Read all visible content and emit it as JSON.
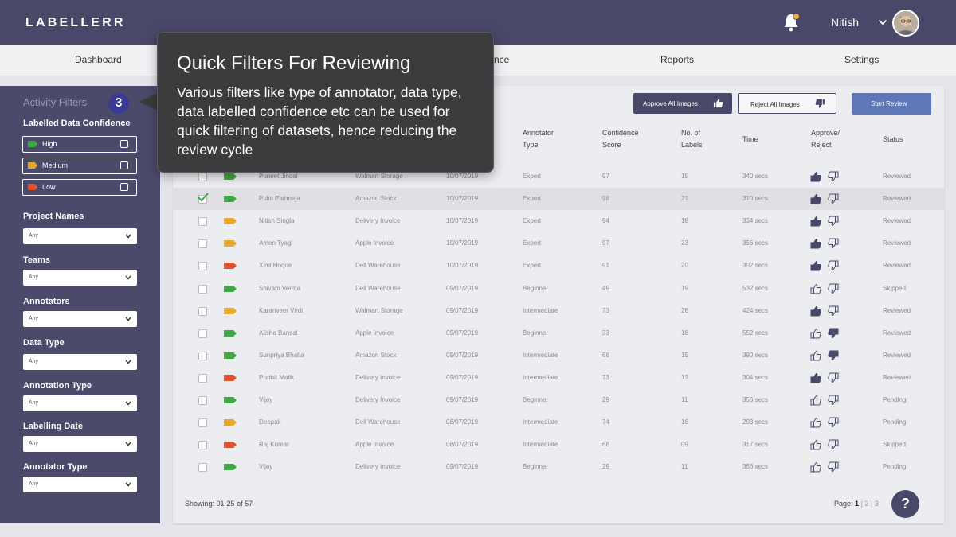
{
  "app": {
    "logo": "LABELLERR"
  },
  "user": {
    "name": "Nitish",
    "notification_dot_color": "#f0a840"
  },
  "nav": {
    "items": [
      {
        "label": "Dashboard"
      },
      {
        "label": "nce"
      },
      {
        "label": "Reports"
      },
      {
        "label": "Settings"
      }
    ]
  },
  "sidebar": {
    "title": "Activity Filters",
    "step_badge": "3",
    "confidence": {
      "label": "Labelled Data Confidence",
      "options": [
        {
          "label": "High",
          "color": "#3fa845"
        },
        {
          "label": "Medium",
          "color": "#e8a92a"
        },
        {
          "label": "Low",
          "color": "#e0522c"
        }
      ]
    },
    "filters": [
      {
        "label": "Project Names",
        "value": "Any"
      },
      {
        "label": "Teams",
        "value": "Any"
      },
      {
        "label": "Annotators",
        "value": "Any"
      },
      {
        "label": "Data Type",
        "value": "Any"
      },
      {
        "label": "Annotation Type",
        "value": "Any"
      },
      {
        "label": "Labelling Date",
        "value": "Any"
      },
      {
        "label": "Annotator Type",
        "value": "Any"
      }
    ]
  },
  "toolbar": {
    "approve_all": "Approve All Images",
    "reject_all": "Reject All Images",
    "start_review": "Start Review"
  },
  "table": {
    "headers": {
      "annotator_type_1": "Annotator",
      "annotator_type_2": "Type",
      "confidence_1": "Confidence",
      "confidence_2": "Score",
      "labels_1": "No. of",
      "labels_2": "Labels",
      "time": "Time",
      "approve_1": "Approve/",
      "approve_2": "Reject",
      "status": "Status"
    },
    "rows": [
      {
        "checked": false,
        "conf": "high",
        "name": "Puneet Jindal",
        "project": "Walmart Storage",
        "date": "10/07/2019",
        "atype": "Expert",
        "score": "97",
        "labels": "15",
        "time": "340 secs",
        "approved": true,
        "rejected": false,
        "status": "Reviewed"
      },
      {
        "checked": true,
        "conf": "high",
        "name": "Pulin Pathneja",
        "project": "Amazon Stock",
        "date": "10/07/2019",
        "atype": "Expert",
        "score": "98",
        "labels": "21",
        "time": "310 secs",
        "approved": true,
        "rejected": false,
        "status": "Reviewed"
      },
      {
        "checked": false,
        "conf": "medium",
        "name": "Nitish Singla",
        "project": "Delivery Invoice",
        "date": "10/07/2019",
        "atype": "Expert",
        "score": "94",
        "labels": "18",
        "time": "334 secs",
        "approved": true,
        "rejected": false,
        "status": "Reviewed"
      },
      {
        "checked": false,
        "conf": "medium",
        "name": "Amen Tyagi",
        "project": "Apple Invoice",
        "date": "10/07/2019",
        "atype": "Expert",
        "score": "97",
        "labels": "23",
        "time": "356 secs",
        "approved": true,
        "rejected": false,
        "status": "Reviewed"
      },
      {
        "checked": false,
        "conf": "low",
        "name": "Ximi Hoque",
        "project": "Dell Warehouse",
        "date": "10/07/2019",
        "atype": "Expert",
        "score": "91",
        "labels": "20",
        "time": "302 secs",
        "approved": true,
        "rejected": false,
        "status": "Reviewed"
      },
      {
        "checked": false,
        "conf": "high",
        "name": "Shivam Verma",
        "project": "Dell Warehouse",
        "date": "09/07/2019",
        "atype": "Beginner",
        "score": "49",
        "labels": "19",
        "time": "532 secs",
        "approved": false,
        "rejected": false,
        "status": "Skipped"
      },
      {
        "checked": false,
        "conf": "medium",
        "name": "Karanveer Virdi",
        "project": "Walmart Storage",
        "date": "09/07/2019",
        "atype": "Intermediate",
        "score": "73",
        "labels": "26",
        "time": "424 secs",
        "approved": true,
        "rejected": false,
        "status": "Reviewed"
      },
      {
        "checked": false,
        "conf": "high",
        "name": "Alisha Bansal",
        "project": "Apple Invoice",
        "date": "09/07/2019",
        "atype": "Beginner",
        "score": "33",
        "labels": "18",
        "time": "552 secs",
        "approved": false,
        "rejected": true,
        "status": "Reviewed"
      },
      {
        "checked": false,
        "conf": "high",
        "name": "Sunpriya Bhatia",
        "project": "Amazon Stock",
        "date": "09/07/2019",
        "atype": "Intermediate",
        "score": "68",
        "labels": "15",
        "time": "390 secs",
        "approved": false,
        "rejected": true,
        "status": "Reviewed"
      },
      {
        "checked": false,
        "conf": "low",
        "name": "Prathit Malik",
        "project": "Delivery Invoice",
        "date": "09/07/2019",
        "atype": "Intermediate",
        "score": "73",
        "labels": "12",
        "time": "304 secs",
        "approved": true,
        "rejected": false,
        "status": "Reviewed"
      },
      {
        "checked": false,
        "conf": "high",
        "name": "Vijay",
        "project": "Delivery Invoice",
        "date": "09/07/2019",
        "atype": "Beginner",
        "score": "29",
        "labels": "11",
        "time": "356 secs",
        "approved": false,
        "rejected": false,
        "status": "Pending"
      },
      {
        "checked": false,
        "conf": "medium",
        "name": "Deepak",
        "project": "Dell Warehouse",
        "date": "08/07/2019",
        "atype": "Intermediate",
        "score": "74",
        "labels": "16",
        "time": "293 secs",
        "approved": false,
        "rejected": false,
        "status": "Pending"
      },
      {
        "checked": false,
        "conf": "low",
        "name": "Raj Kumar",
        "project": "Apple Invoice",
        "date": "08/07/2019",
        "atype": "Intermediate",
        "score": "68",
        "labels": "09",
        "time": "317 secs",
        "approved": false,
        "rejected": false,
        "status": "Skipped"
      },
      {
        "checked": false,
        "conf": "high",
        "name": "Vijay",
        "project": "Delivery Invoice",
        "date": "09/07/2019",
        "atype": "Beginner",
        "score": "29",
        "labels": "11",
        "time": "356 secs",
        "approved": false,
        "rejected": false,
        "status": "Pending"
      }
    ]
  },
  "footer": {
    "showing_label": "Showing:",
    "showing_range": "01-25 of 57",
    "page_label": "Page:",
    "page_current": "1",
    "page_2": "2",
    "page_3": "3",
    "separator": "|",
    "help": "?"
  },
  "tooltip": {
    "title": "Quick Filters For Reviewing",
    "body": "Various filters like type of annotator, data type, data labelled confidence etc can be used for quick filtering of datasets, hence reducing the review cycle"
  },
  "colors": {
    "conf": {
      "high": "#3fa845",
      "medium": "#e8a92a",
      "low": "#e0522c"
    },
    "topbar": "#4a4868",
    "sidebar": "#4b4a6b",
    "start_review": "#5d78b9"
  }
}
